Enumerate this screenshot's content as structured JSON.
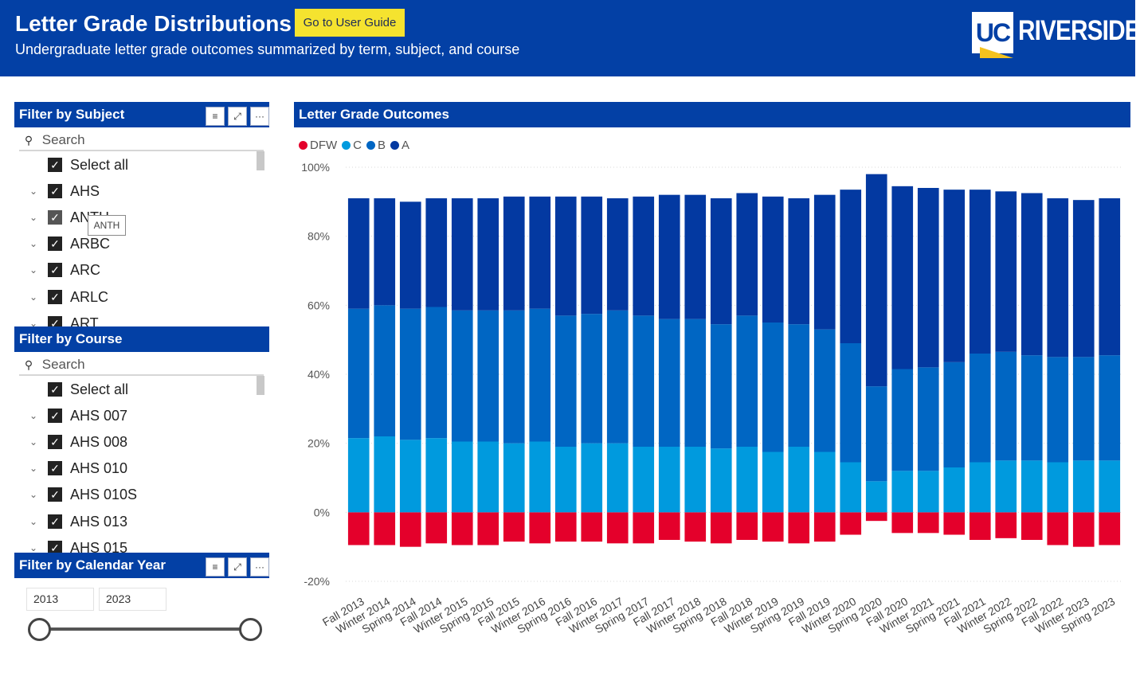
{
  "header": {
    "title": "Letter Grade Distributions",
    "guide_button": "Go to User Guide",
    "subtitle": "Undergraduate letter grade outcomes summarized by term, subject, and course",
    "logo_uc": "UC",
    "logo_text": "RIVERSIDE"
  },
  "subject_filter": {
    "title": "Filter by Subject",
    "search_placeholder": "Search",
    "items": [
      "Select all",
      "AHS",
      "ANTH",
      "ARBC",
      "ARC",
      "ARLC",
      "ART"
    ],
    "tooltip": "ANTH"
  },
  "course_filter": {
    "title": "Filter by Course",
    "search_placeholder": "Search",
    "items": [
      "Select all",
      "AHS 007",
      "AHS 008",
      "AHS 010",
      "AHS 010S",
      "AHS 013",
      "AHS 015"
    ]
  },
  "year_filter": {
    "title": "Filter by Calendar Year",
    "start": "2013",
    "end": "2023"
  },
  "icons": {
    "filter": "filter-icon",
    "focus": "focus-mode-icon",
    "more": "more-options-icon",
    "search": "search-icon",
    "chevron": "chevron-down-icon",
    "check": "checkbox-checked-icon"
  },
  "colors": {
    "header": "#0340a5",
    "guide_button": "#f5e32f",
    "DFW": "#e4002b",
    "C": "#009ade",
    "B": "#0066c3",
    "A": "#0339a1"
  },
  "chart_data": {
    "type": "bar",
    "title": "Letter Grade Outcomes",
    "stacked": true,
    "categories": [
      "Fall 2013",
      "Winter 2014",
      "Spring 2014",
      "Fall 2014",
      "Winter 2015",
      "Spring 2015",
      "Fall 2015",
      "Winter 2016",
      "Spring 2016",
      "Fall 2016",
      "Winter 2017",
      "Spring 2017",
      "Fall 2017",
      "Winter 2018",
      "Spring 2018",
      "Fall 2018",
      "Winter 2019",
      "Spring 2019",
      "Fall 2019",
      "Winter 2020",
      "Spring 2020",
      "Fall 2020",
      "Winter 2021",
      "Spring 2021",
      "Fall 2021",
      "Winter 2022",
      "Spring 2022",
      "Fall 2022",
      "Winter 2023",
      "Spring 2023"
    ],
    "series": [
      {
        "name": "DFW",
        "values": [
          -9.5,
          -9.5,
          -10,
          -9,
          -9.5,
          -9.5,
          -8.5,
          -9,
          -8.5,
          -8.5,
          -9,
          -9,
          -8,
          -8.5,
          -9,
          -8,
          -8.5,
          -9,
          -8.5,
          -6.5,
          -2.5,
          -6,
          -6,
          -6.5,
          -8,
          -7.5,
          -8,
          -9.5,
          -10,
          -9.5
        ]
      },
      {
        "name": "C",
        "values": [
          21.5,
          22,
          21,
          21.5,
          20.5,
          20.5,
          20,
          20.5,
          19,
          20,
          20,
          19,
          19,
          19,
          18.5,
          19,
          17.5,
          19,
          17.5,
          14.5,
          9,
          12,
          12,
          13,
          14.5,
          15,
          15,
          14.5,
          15,
          15
        ]
      },
      {
        "name": "B",
        "values": [
          37.5,
          38,
          38,
          38,
          38,
          38,
          38.5,
          38.5,
          38,
          37.5,
          38.5,
          38,
          37,
          37,
          36,
          38,
          37.5,
          35.5,
          35.5,
          34.5,
          27.5,
          29.5,
          30,
          30.5,
          31.5,
          31.5,
          30.5,
          30.5,
          30,
          30.5
        ]
      },
      {
        "name": "A",
        "values": [
          32,
          31,
          31,
          31.5,
          32.5,
          32.5,
          33,
          32.5,
          34.5,
          34,
          32.5,
          34.5,
          36,
          36,
          36.5,
          35.5,
          36.5,
          36.5,
          39,
          44.5,
          61.5,
          53,
          52,
          50,
          47.5,
          46.5,
          47,
          46,
          45.5,
          45.5
        ]
      }
    ],
    "ylim": [
      -20,
      100
    ],
    "yticks": [
      "-20%",
      "0%",
      "20%",
      "40%",
      "60%",
      "80%",
      "100%"
    ],
    "ytick_values": [
      -20,
      0,
      20,
      40,
      60,
      80,
      100
    ],
    "legend_position": "top-left",
    "grid": true
  }
}
